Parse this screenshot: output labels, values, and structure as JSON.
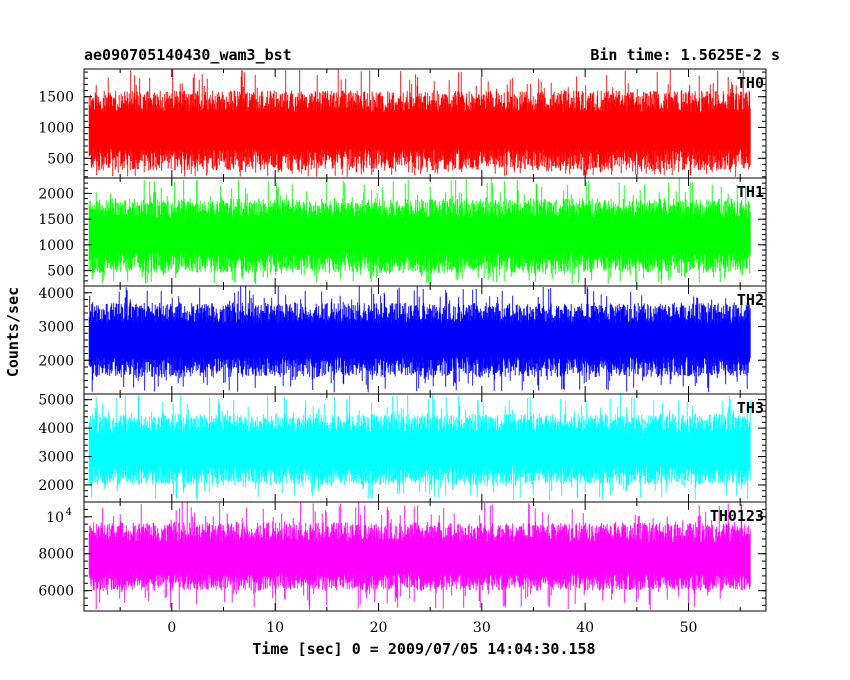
{
  "chart_data": {
    "type": "line",
    "title_left": "ae090705140430_wam3_bst",
    "title_right": "Bin time: 1.5625E-2 s",
    "xlabel": "Time [sec] 0 = 2009/07/05 14:04:30.158",
    "ylabel": "Counts/sec",
    "xlim": [
      -8.5,
      57.5
    ],
    "data_x_range": [
      -8,
      56
    ],
    "x_ticks": [
      0,
      10,
      20,
      30,
      40,
      50
    ],
    "x_tick_labels": [
      "0",
      "10",
      "20",
      "30",
      "40",
      "50"
    ],
    "grid": false,
    "panels": [
      {
        "name": "TH0",
        "color": "#ff0000",
        "ylim": [
          180,
          1950
        ],
        "y_ticks": [
          500,
          1000,
          1500
        ],
        "y_tick_labels": [
          "500",
          "1000",
          "1500"
        ],
        "typical_range": [
          300,
          1600
        ],
        "extreme_range": [
          200,
          1950
        ],
        "mean": 950
      },
      {
        "name": "TH1",
        "color": "#00ff00",
        "ylim": [
          200,
          2300
        ],
        "y_ticks": [
          500,
          1000,
          1500,
          2000
        ],
        "y_tick_labels": [
          "500",
          "1000",
          "1500",
          "2000"
        ],
        "typical_range": [
          450,
          1900
        ],
        "extreme_range": [
          230,
          2300
        ],
        "mean": 1200
      },
      {
        "name": "TH2",
        "color": "#0000ff",
        "ylim": [
          1000,
          4200
        ],
        "y_ticks": [
          2000,
          3000,
          4000
        ],
        "y_tick_labels": [
          "2000",
          "3000",
          "4000"
        ],
        "typical_range": [
          1500,
          3700
        ],
        "extreme_range": [
          1050,
          4200
        ],
        "mean": 2600
      },
      {
        "name": "TH3",
        "color": "#00ffff",
        "ylim": [
          1400,
          5200
        ],
        "y_ticks": [
          2000,
          3000,
          4000,
          5000
        ],
        "y_tick_labels": [
          "2000",
          "3000",
          "4000",
          "5000"
        ],
        "typical_range": [
          2000,
          4500
        ],
        "extreme_range": [
          1450,
          5200
        ],
        "mean": 3250
      },
      {
        "name": "TH0123",
        "color": "#ff00ff",
        "ylim": [
          4900,
          10800
        ],
        "y_ticks": [
          6000,
          8000
        ],
        "y_tick_labels": [
          "6000",
          "8000"
        ],
        "y_top_label_base": "10",
        "y_top_label_exp": "4",
        "typical_range": [
          6000,
          9700
        ],
        "extreme_range": [
          4950,
          10800
        ],
        "mean": 7700
      }
    ]
  }
}
